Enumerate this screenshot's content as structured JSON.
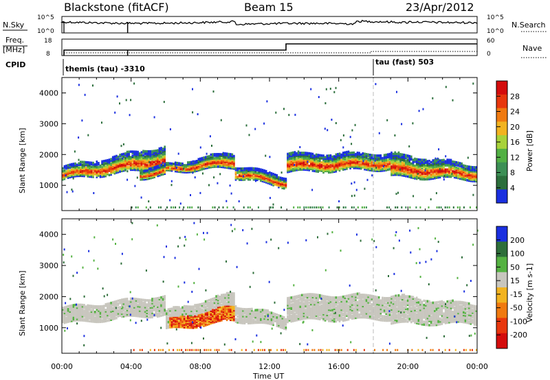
{
  "header": {
    "station": "Blackstone (fitACF)",
    "beam": "Beam 15",
    "date": "23/Apr/2012"
  },
  "status_panels": {
    "nsky_label": "N.Sky",
    "nsearch_label": "N.Search",
    "freq_label_top": "Freq.",
    "freq_label_bottom": "[MHz]",
    "nave_label": "Nave",
    "cpid_label": "CPID",
    "noise_ticks_left": [
      "10^5",
      "10^0"
    ],
    "noise_ticks_right": [
      "10^5",
      "10^0"
    ],
    "freq_ticks": [
      "18",
      "8"
    ],
    "nave_ticks": [
      "60",
      "0"
    ],
    "cpid_entries": [
      {
        "text": "themis (tau) -3310",
        "start_hour": 0.0
      },
      {
        "text": "tau (fast) 503",
        "start_hour": 18.0
      }
    ]
  },
  "x_axis": {
    "label": "Time UT",
    "ticks": [
      "00:00",
      "04:00",
      "08:00",
      "12:00",
      "16:00",
      "20:00",
      "00:00"
    ],
    "range_hours": [
      0,
      24
    ]
  },
  "chart_data": [
    {
      "type": "heatmap",
      "name": "power",
      "ylabel": "Slant Range [km]",
      "yticks": [
        "1000",
        "2000",
        "3000",
        "4000"
      ],
      "ylim": [
        180,
        4500
      ],
      "colorbar_label": "Power [dB]",
      "colorbar_ticks": [
        "4",
        "8",
        "12",
        "16",
        "20",
        "24",
        "28"
      ],
      "colorbar_range": [
        0,
        32
      ],
      "colors": [
        "#1a2fe0",
        "#2b6e3b",
        "#3c8f55",
        "#52b044",
        "#a8d23a",
        "#f2b320",
        "#f07a10",
        "#e8370d",
        "#d40c0c"
      ],
      "bands": [
        {
          "t": [
            0.0,
            6.0
          ],
          "r0": [
            1150,
            1550
          ],
          "r1": [
            1550,
            2250
          ]
        },
        {
          "t": [
            4.5,
            6.0
          ],
          "r0": [
            1200,
            1300
          ],
          "r1": [
            1500,
            1650
          ]
        },
        {
          "t": [
            6.0,
            10.0
          ],
          "r0": [
            1400,
            1550
          ],
          "r1": [
            1650,
            2050
          ]
        },
        {
          "t": [
            10.0,
            13.0
          ],
          "r0": [
            1200,
            900
          ],
          "r1": [
            1600,
            1250
          ]
        },
        {
          "t": [
            13.0,
            19.0
          ],
          "r0": [
            1400,
            1500
          ],
          "r1": [
            2000,
            2000
          ]
        },
        {
          "t": [
            19.0,
            24.0
          ],
          "r0": [
            1250,
            1150
          ],
          "r1": [
            2000,
            1600
          ]
        }
      ]
    },
    {
      "type": "heatmap",
      "name": "velocity",
      "ylabel": "Slant Range [km]",
      "yticks": [
        "1000",
        "2000",
        "3000",
        "4000"
      ],
      "ylim": [
        180,
        4500
      ],
      "colorbar_label": "Velocity [m s-1]",
      "colorbar_ticks": [
        "200",
        "100",
        "50",
        "15",
        "-15",
        "-50",
        "-100",
        "-200"
      ],
      "colorbar_range": [
        -250,
        250
      ],
      "colors": [
        "#1a2fe0",
        "#2e6e3a",
        "#55b242",
        "#c8c6be",
        "#f2b320",
        "#f07a10",
        "#e8370d",
        "#d40c0c"
      ],
      "ground_scatter_color": "#c8c6be",
      "bands": [
        {
          "t": [
            0.0,
            6.0
          ],
          "r0": [
            1100,
            1400
          ],
          "r1": [
            1600,
            2000
          ]
        },
        {
          "t": [
            6.0,
            10.0
          ],
          "r0": [
            900,
            1200
          ],
          "r1": [
            1500,
            2100
          ]
        },
        {
          "t": [
            10.0,
            13.0
          ],
          "r0": [
            1200,
            950
          ],
          "r1": [
            1700,
            1300
          ]
        },
        {
          "t": [
            13.0,
            19.0
          ],
          "r0": [
            1200,
            1250
          ],
          "r1": [
            2000,
            2000
          ]
        },
        {
          "t": [
            19.0,
            24.0
          ],
          "r0": [
            1100,
            1100
          ],
          "r1": [
            2000,
            1700
          ]
        }
      ]
    }
  ]
}
